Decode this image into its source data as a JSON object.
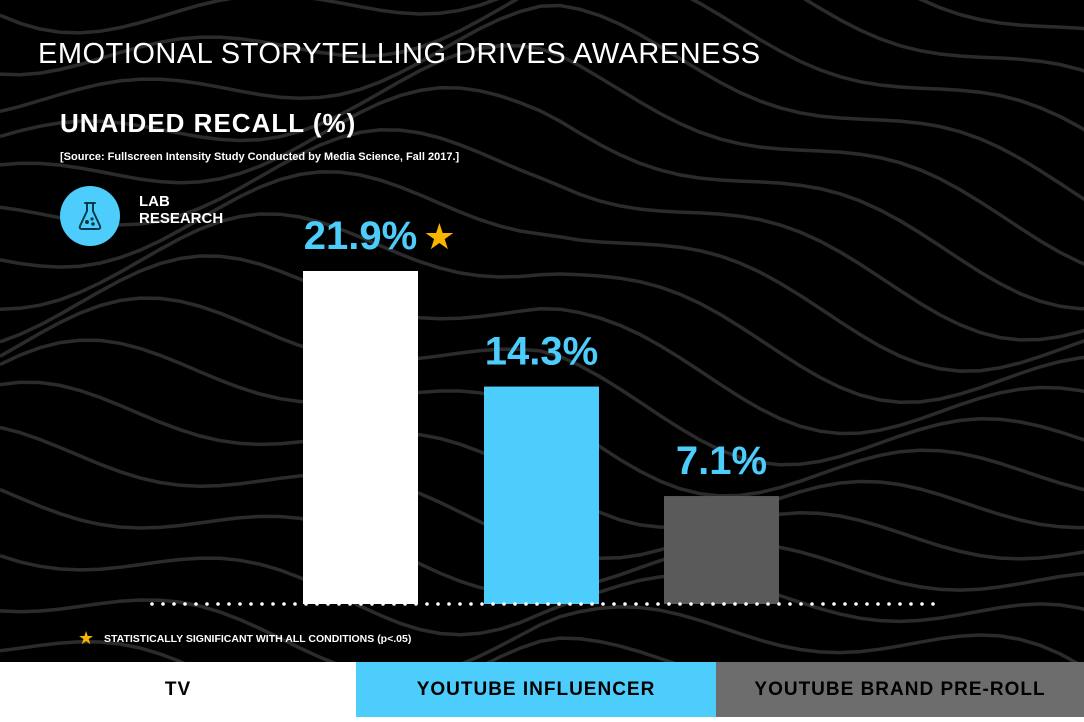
{
  "header": {
    "title": "EMOTIONAL STORYTELLING DRIVES AWARENESS",
    "subtitle": "UNAIDED RECALL (%)",
    "source": "[Source: Fullscreen Intensity Study Conducted by Media Science, Fall 2017.]"
  },
  "badge": {
    "icon": "flask-icon",
    "line1": "LAB",
    "line2": "RESEARCH",
    "color": "#4ccdfb"
  },
  "footnote": {
    "icon": "star-icon",
    "text": "STATISTICALLY SIGNIFICANT WITH ALL CONDITIONS (p<.05)"
  },
  "chart_data": {
    "type": "bar",
    "title": "UNAIDED RECALL (%)",
    "categories": [
      "TV",
      "YOUTUBE INFLUENCER",
      "YOUTUBE BRAND PRE-ROLL"
    ],
    "values": [
      21.9,
      14.3,
      7.1
    ],
    "data_labels": [
      "21.9%",
      "14.3%",
      "7.1%"
    ],
    "significant": [
      true,
      false,
      false
    ],
    "bar_colors": [
      "#ffffff",
      "#4ccdfb",
      "#5a5a5a"
    ],
    "footer_colors": [
      "#ffffff",
      "#4ccdfb",
      "#6d6d6d"
    ],
    "label_color": "#4ccdfb",
    "star_color": "#f7b500",
    "ylim": [
      0,
      21.9
    ],
    "grid": false,
    "baseline": "dotted"
  }
}
